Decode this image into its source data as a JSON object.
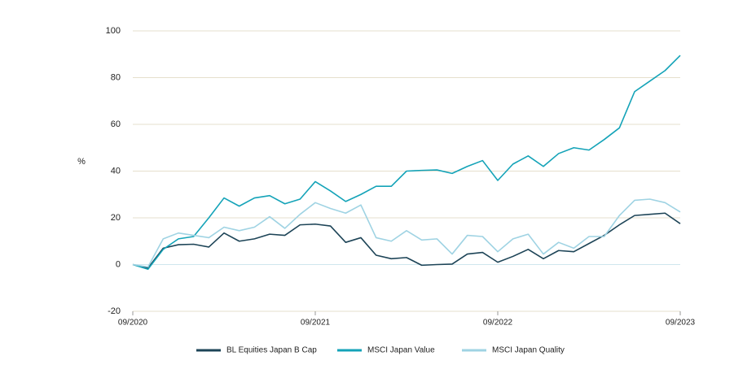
{
  "chart_data": {
    "type": "line",
    "y_label": "%",
    "categories": [
      "09/2020",
      null,
      null,
      null,
      null,
      null,
      null,
      null,
      null,
      null,
      null,
      null,
      "09/2021",
      null,
      null,
      null,
      null,
      null,
      null,
      null,
      null,
      null,
      null,
      null,
      "09/2022",
      null,
      null,
      null,
      null,
      null,
      null,
      null,
      null,
      null,
      null,
      null,
      "09/2023"
    ],
    "series": [
      {
        "name": "BL Equities Japan B Cap",
        "color": "#1d4457",
        "values": [
          0,
          -1.5,
          7,
          8.5,
          8.7,
          7.5,
          13.5,
          10,
          11,
          13,
          12.5,
          17,
          17.3,
          16.5,
          9.5,
          11.5,
          4,
          2.5,
          3,
          -0.3,
          0,
          0.2,
          4.5,
          5.2,
          1,
          3.5,
          6.5,
          2.5,
          6,
          5.5,
          9,
          12.5,
          17,
          21,
          21.5,
          22,
          17.5
        ]
      },
      {
        "name": "MSCI Japan Value",
        "color": "#14a3b8",
        "values": [
          0,
          -2,
          6.5,
          11,
          12,
          20,
          28.5,
          25,
          28.5,
          29.5,
          26,
          28,
          35.5,
          31.5,
          27,
          30,
          33.5,
          33.5,
          40,
          40.3,
          40.5,
          39,
          42,
          44.5,
          36,
          43,
          46.5,
          42,
          47.5,
          50,
          49,
          53.5,
          58.5,
          74,
          78.5,
          83,
          89.5
        ]
      },
      {
        "name": "MSCI Japan Quality",
        "color": "#9fd3e3",
        "values": [
          0,
          -1,
          11,
          13.5,
          12.5,
          11.5,
          16,
          14.5,
          16,
          20.5,
          15.5,
          21.5,
          26.5,
          24,
          22,
          25.5,
          11.5,
          10,
          14.5,
          10.5,
          11,
          4.5,
          12.5,
          12,
          5.5,
          11,
          13,
          4.5,
          9.5,
          7,
          12,
          12,
          21,
          27.5,
          28,
          26.5,
          22.5
        ]
      }
    ],
    "ylim": [
      -20,
      100
    ],
    "yticks": [
      -20,
      0,
      20,
      40,
      60,
      80,
      100
    ],
    "grid": true,
    "legend": "bottom"
  }
}
